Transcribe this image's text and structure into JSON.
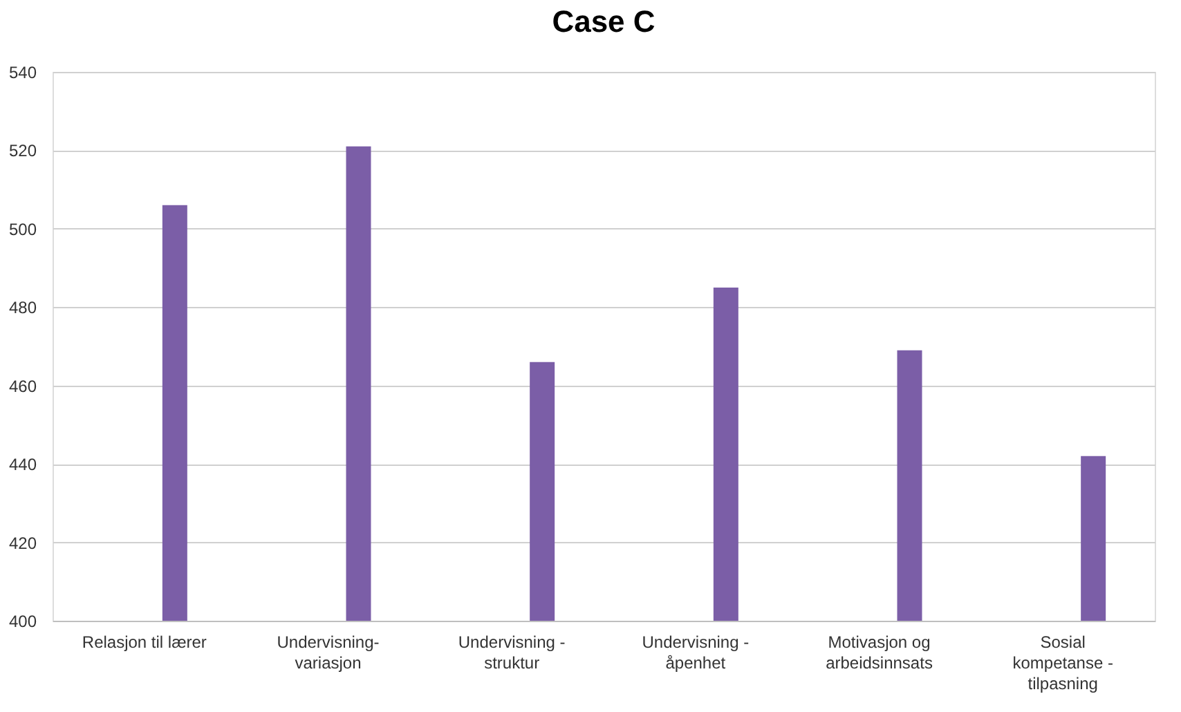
{
  "chart_data": {
    "type": "bar",
    "title": "Case C",
    "categories": [
      "Relasjon til lærer",
      "Undervisning-\nvariasjon",
      "Undervisning -\nstruktur",
      "Undervisning -\nåpenhet",
      "Motivasjon og\narbeidsinnsats",
      "Sosial\nkompetanse -\ntilpasning"
    ],
    "values": [
      506,
      521,
      466,
      485,
      469,
      442
    ],
    "color": "#7b5ea7",
    "ylim": [
      400,
      540
    ],
    "yticks": [
      400,
      420,
      440,
      460,
      480,
      500,
      520,
      540
    ],
    "grid": "y"
  }
}
